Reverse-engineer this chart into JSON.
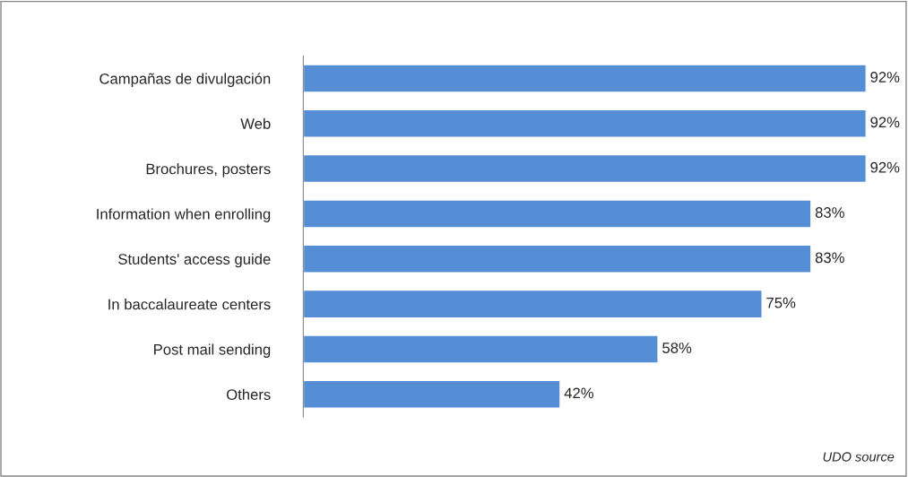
{
  "chart_data": {
    "type": "bar",
    "orientation": "horizontal",
    "categories": [
      "Campañas de divulgación",
      "Web",
      "Brochures, posters",
      "Information when enrolling",
      "Students' access guide",
      "In baccalaureate centers",
      "Post mail sending",
      "Others"
    ],
    "values": [
      92,
      92,
      92,
      83,
      83,
      75,
      58,
      42
    ],
    "value_labels": [
      "92%",
      "92%",
      "92%",
      "83%",
      "83%",
      "75%",
      "58%",
      "42%"
    ],
    "color": "#558ed5",
    "annotations": [
      "UDO source"
    ]
  }
}
